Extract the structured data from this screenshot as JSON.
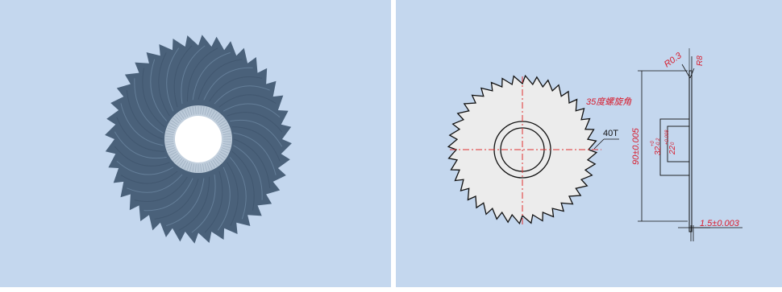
{
  "colors": {
    "background": "#c4d7ee",
    "blade": "#4a617a",
    "drawing_line": "#111111",
    "dimension_text": "#d81b2c",
    "centerline": "#e03030",
    "blade_fill": "#ececec"
  },
  "left_view": {
    "teeth": 40
  },
  "right_view": {
    "teeth": 40,
    "labels": {
      "tooth_count": "40T",
      "helix_angle": "35度螺旋角",
      "diameter": "90±0.005",
      "bore": "32",
      "bore_tol_upper": "+0",
      "bore_tol_lower": "-0.2",
      "hub": "22",
      "hub_tol_upper": "+0.008",
      "hub_tol_lower": "0",
      "thickness": "1.5±0.003",
      "edge_radius": "R0.3",
      "edge_radius_2": "R8"
    }
  }
}
